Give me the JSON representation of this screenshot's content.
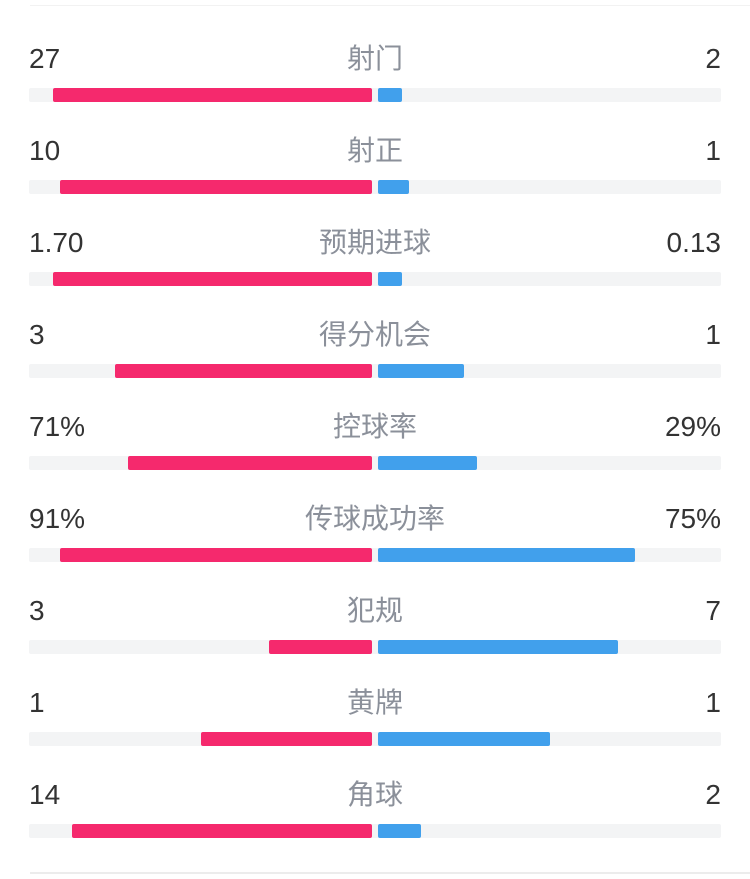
{
  "page": {
    "background": "#ffffff"
  },
  "colors": {
    "home": "#f5296d",
    "away": "#41a0ec",
    "track": "#f3f4f5",
    "value_text": "#333333",
    "label_text": "#8b909a",
    "divider_top": "#f2f2f2",
    "divider_bottom": "#ececec"
  },
  "stats": {
    "rows": [
      {
        "label": "射门",
        "home": "27",
        "away": "2",
        "home_pct": 93.1,
        "away_pct": 6.9
      },
      {
        "label": "射正",
        "home": "10",
        "away": "1",
        "home_pct": 90.9,
        "away_pct": 9.1
      },
      {
        "label": "预期进球",
        "home": "1.70",
        "away": "0.13",
        "home_pct": 92.9,
        "away_pct": 7.1
      },
      {
        "label": "得分机会",
        "home": "3",
        "away": "1",
        "home_pct": 75,
        "away_pct": 25
      },
      {
        "label": "控球率",
        "home": "71%",
        "away": "29%",
        "home_pct": 71,
        "away_pct": 29
      },
      {
        "label": "传球成功率",
        "home": "91%",
        "away": "75%",
        "home_pct": 91,
        "away_pct": 75
      },
      {
        "label": "犯规",
        "home": "3",
        "away": "7",
        "home_pct": 30,
        "away_pct": 70
      },
      {
        "label": "黄牌",
        "home": "1",
        "away": "1",
        "home_pct": 50,
        "away_pct": 50
      },
      {
        "label": "角球",
        "home": "14",
        "away": "2",
        "home_pct": 87.5,
        "away_pct": 12.5
      }
    ]
  },
  "chart_data": {
    "type": "bar",
    "subtype": "diverging-horizontal-comparison",
    "categories": [
      "射门",
      "射正",
      "预期进球",
      "得分机会",
      "控球率",
      "传球成功率",
      "犯规",
      "黄牌",
      "角球"
    ],
    "series": [
      {
        "name": "home-team",
        "color": "#f5296d",
        "values": [
          27,
          10,
          1.7,
          3,
          71,
          91,
          3,
          1,
          14
        ],
        "display": [
          "27",
          "10",
          "1.70",
          "3",
          "71%",
          "91%",
          "3",
          "1",
          "14"
        ]
      },
      {
        "name": "away-team",
        "color": "#41a0ec",
        "values": [
          2,
          1,
          0.13,
          1,
          29,
          75,
          7,
          1,
          2
        ],
        "display": [
          "2",
          "1",
          "0.13",
          "1",
          "29%",
          "75%",
          "7",
          "1",
          "2"
        ]
      }
    ],
    "title": "",
    "xlabel": "",
    "ylabel": "",
    "legend": "none",
    "grid": false,
    "bar_scaling": "count rows: value/(home+away) of half width; percent rows: value/100 of half width"
  }
}
